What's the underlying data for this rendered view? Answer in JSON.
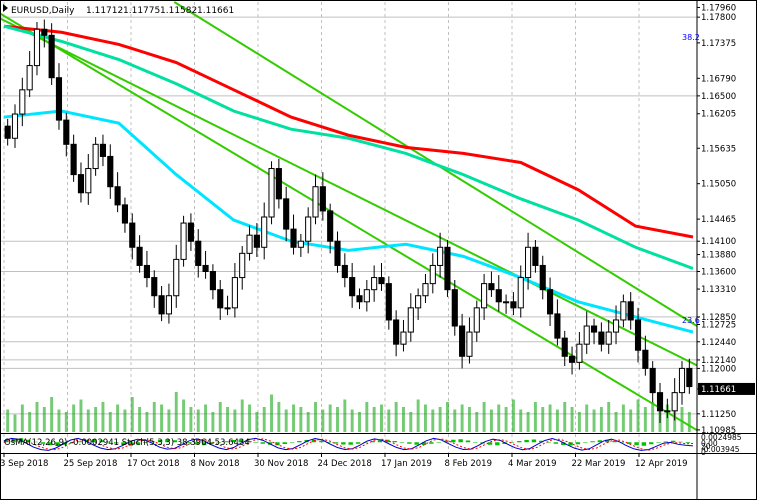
{
  "header": {
    "symbol": "EURUSD,Daily",
    "open": "1.11712",
    "high": "1.11775",
    "low": "1.11582",
    "close": "1.11661"
  },
  "oscillator_header": "OsMA(12,26,9) -0.0002941  Stoch(5,3,3) 38.3964 53.6434",
  "colors": {
    "background": "#ffffff",
    "candles": "#000000",
    "ema_red": "#ff0000",
    "ema_green": "#00e0a0",
    "ema_cyan": "#00e5ff",
    "channel": "#33cc00",
    "fib_label": "#0000ff",
    "volume": "#00a000",
    "osma": "#00c000",
    "stoch_main": "#0000cc",
    "stoch_signal": "#ff0000"
  },
  "chart_data": [
    {
      "type": "candlestick",
      "title": "EURUSD,Daily",
      "ohlc_last": {
        "open": 1.11712,
        "high": 1.11775,
        "low": 1.11582,
        "close": 1.11661
      },
      "x_tick_labels": [
        "3 Sep 2018",
        "25 Sep 2018",
        "17 Oct 2018",
        "8 Nov 2018",
        "30 Nov 2018",
        "24 Dec 2018",
        "17 Jan 2019",
        "8 Feb 2019",
        "4 Mar 2019",
        "22 Mar 2019",
        "12 Apr 2019"
      ],
      "y_tick_labels": [
        "1.17960",
        "1.17800",
        "1.17375",
        "1.16790",
        "1.16500",
        "1.16205",
        "1.15635",
        "1.15050",
        "1.14465",
        "1.14100",
        "1.13880",
        "1.13600",
        "1.13310",
        "1.12850",
        "1.12725",
        "1.12440",
        "1.12140",
        "1.12000",
        "1.11661",
        "1.11250",
        "1.10985"
      ],
      "ylim": [
        1.1095,
        1.1805
      ],
      "horizontal_levels": [
        1.178,
        1.165,
        1.141,
        1.136,
        1.1285,
        1.1244,
        1.1214,
        1.12,
        1.1125
      ],
      "annotations": [
        "38.2",
        "23.6"
      ],
      "closes": [
        1.158,
        1.162,
        1.166,
        1.17,
        1.176,
        1.175,
        1.168,
        1.161,
        1.157,
        1.152,
        1.149,
        1.153,
        1.157,
        1.155,
        1.15,
        1.147,
        1.144,
        1.14,
        1.137,
        1.135,
        1.132,
        1.129,
        1.132,
        1.138,
        1.144,
        1.141,
        1.137,
        1.136,
        1.133,
        1.13,
        1.13,
        1.135,
        1.139,
        1.142,
        1.14,
        1.145,
        1.153,
        1.148,
        1.143,
        1.14,
        1.141,
        1.145,
        1.15,
        1.146,
        1.141,
        1.137,
        1.135,
        1.132,
        1.131,
        1.133,
        1.135,
        1.134,
        1.128,
        1.124,
        1.126,
        1.13,
        1.132,
        1.134,
        1.137,
        1.14,
        1.133,
        1.127,
        1.122,
        1.126,
        1.13,
        1.134,
        1.133,
        1.131,
        1.131,
        1.13,
        1.135,
        1.14,
        1.137,
        1.133,
        1.129,
        1.125,
        1.122,
        1.121,
        1.124,
        1.127,
        1.126,
        1.124,
        1.126,
        1.128,
        1.131,
        1.128,
        1.123,
        1.12,
        1.116,
        1.113,
        1.113,
        1.116,
        1.12,
        1.117
      ],
      "emas": [
        {
          "color": "#ff0000",
          "values": [
            1.1765,
            1.1755,
            1.1735,
            1.1705,
            1.166,
            1.1615,
            1.1585,
            1.1565,
            1.1555,
            1.154,
            1.1495,
            1.1435,
            1.1417
          ]
        },
        {
          "color": "#00e0a0",
          "values": [
            1.1765,
            1.174,
            1.171,
            1.167,
            1.1625,
            1.1595,
            1.158,
            1.1555,
            1.152,
            1.148,
            1.1445,
            1.14,
            1.1365
          ]
        },
        {
          "color": "#00e5ff",
          "values": [
            1.1615,
            1.1625,
            1.1605,
            1.152,
            1.1445,
            1.141,
            1.1395,
            1.1405,
            1.1385,
            1.135,
            1.131,
            1.1285,
            1.126
          ]
        }
      ],
      "channel_lines": [
        {
          "x0": 0,
          "y0": 1.1786,
          "x1": 1,
          "y1": 1.1098
        },
        {
          "x0": 0.25,
          "y0": 1.1805,
          "x1": 1,
          "y1": 1.127
        },
        {
          "x0": 0,
          "y0": 1.1778,
          "x1": 1,
          "y1": 1.1205
        }
      ]
    },
    {
      "type": "bar",
      "title": "Volume",
      "values": [
        9,
        7,
        11,
        8,
        12,
        10,
        14,
        9,
        8,
        11,
        13,
        9,
        10,
        12,
        8,
        11,
        9,
        14,
        10,
        8,
        12,
        11,
        9,
        16,
        13,
        10,
        9,
        11,
        8,
        12,
        10,
        9,
        13,
        11,
        8,
        10,
        15,
        12,
        9,
        11,
        10,
        8,
        12,
        9,
        11,
        10,
        13,
        9,
        8,
        12,
        10,
        11,
        9,
        12,
        10,
        8,
        13,
        11,
        9,
        10,
        12,
        9,
        11,
        10,
        8,
        12,
        9,
        11,
        10,
        13,
        9,
        8,
        12,
        10,
        11,
        9,
        12,
        10,
        8,
        11,
        9,
        10,
        12,
        8,
        11,
        9,
        13,
        10,
        12,
        15,
        11,
        9,
        10,
        8
      ]
    },
    {
      "type": "bar",
      "title": "OsMA(12,26,9)",
      "y_tick_labels": [
        "0.0024985",
        "0.00",
        "-0.003945"
      ],
      "ylim": [
        -0.0039,
        0.0025
      ],
      "last_value": -0.0002941,
      "values": [
        0.0008,
        0.0014,
        0.0016,
        0.001,
        0.0002,
        -0.0006,
        -0.0012,
        -0.0015,
        -0.001,
        -0.0004,
        0.0004,
        0.001,
        0.0013,
        0.0008,
        0.0002,
        -0.0005,
        -0.0011,
        -0.0014,
        -0.0009,
        -0.0003,
        0.0003,
        0.0009,
        0.0012,
        0.0008,
        0.0002,
        -0.0004,
        -0.0009,
        -0.0012,
        -0.0008,
        -0.0002,
        0.0004,
        0.0009,
        0.0011,
        0.0006,
        0,
        -0.0006,
        -0.001,
        -0.0012,
        -0.0007,
        -0.0001,
        0.0005,
        0.0009,
        0.001,
        0.0006,
        0.0001,
        -0.0005,
        -0.0009,
        -0.001,
        -0.0006,
        0,
        0.0005,
        0.0008,
        0.001,
        0.0005,
        -0.0001,
        -0.0006,
        -0.001,
        -0.0011,
        -0.0006,
        0,
        0.0006,
        0.001,
        0.0012,
        0.0007,
        0.0001,
        -0.0005,
        -0.001,
        -0.0012,
        -0.0007,
        -0.0001,
        0.0005,
        0.0009,
        0.0011,
        0.0006,
        0,
        -0.0006,
        -0.0011,
        -0.0013,
        -0.0008,
        -0.0002,
        0.0004,
        0.0008,
        0.001,
        0.0005,
        -0.0001,
        -0.0007,
        -0.0012,
        -0.0014,
        -0.0008,
        -0.0002,
        0.0003,
        0.0006,
        0.0002,
        -0.0003
      ]
    },
    {
      "type": "line",
      "title": "Stoch(5,3,3)",
      "y_tick_labels": [
        "20",
        "0"
      ],
      "ylim": [
        0,
        100
      ],
      "last_values": {
        "main": 38.3964,
        "signal": 53.6434
      },
      "series": [
        {
          "name": "Stoch(5,3,3)",
          "values": [
            70,
            85,
            80,
            55,
            30,
            15,
            10,
            25,
            50,
            75,
            85,
            70,
            45,
            25,
            15,
            20,
            40,
            65,
            80,
            75,
            55,
            30,
            18,
            22,
            45,
            70,
            82,
            70,
            45,
            25,
            15,
            28,
            55,
            78,
            85,
            72,
            48,
            26,
            15,
            22,
            45,
            70,
            84,
            75,
            50,
            28,
            16,
            20,
            42,
            68,
            82,
            74,
            50,
            28,
            15,
            20,
            44,
            70,
            85,
            76,
            52,
            30,
            16,
            18,
            40,
            66,
            80,
            72,
            48,
            26,
            14,
            22,
            48,
            72,
            84,
            70,
            46,
            24,
            12,
            20,
            45,
            70,
            80,
            65,
            40,
            20,
            10,
            15,
            35,
            55,
            60,
            48,
            42,
            38
          ]
        },
        {
          "name": "signal",
          "values": [
            60,
            75,
            82,
            70,
            50,
            30,
            18,
            15,
            30,
            55,
            75,
            80,
            65,
            45,
            28,
            18,
            25,
            45,
            65,
            78,
            70,
            50,
            30,
            20,
            28,
            50,
            72,
            78,
            65,
            45,
            26,
            18,
            33,
            58,
            78,
            82,
            68,
            45,
            25,
            18,
            28,
            52,
            74,
            80,
            68,
            46,
            26,
            18,
            28,
            52,
            74,
            80,
            68,
            45,
            25,
            18,
            28,
            52,
            75,
            82,
            70,
            48,
            28,
            18,
            25,
            48,
            70,
            78,
            66,
            44,
            24,
            16,
            30,
            56,
            76,
            80,
            65,
            44,
            25,
            15,
            25,
            50,
            70,
            75,
            60,
            38,
            20,
            12,
            22,
            42,
            55,
            58,
            52,
            53
          ]
        }
      ]
    }
  ]
}
